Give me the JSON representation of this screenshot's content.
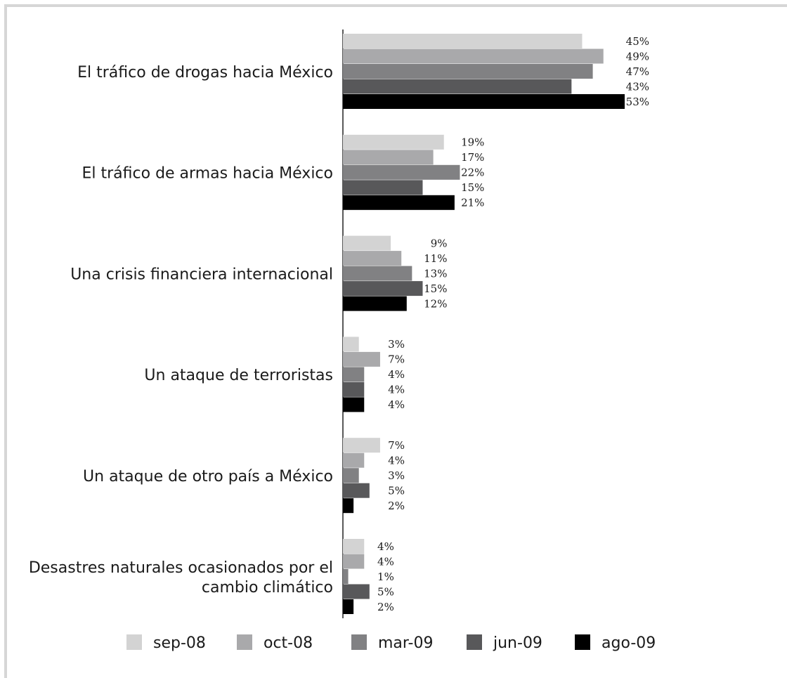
{
  "chart_data": {
    "type": "bar",
    "orientation": "horizontal",
    "categories": [
      [
        "El tráfico de drogas hacia México"
      ],
      [
        "El tráfico de armas hacia México"
      ],
      [
        "Una crisis financiera internacional"
      ],
      [
        "Un ataque de terroristas"
      ],
      [
        "Un ataque de otro país a México"
      ],
      [
        "Desastres naturales ocasionados por el",
        "cambio climático"
      ]
    ],
    "series": [
      {
        "name": "sep-08",
        "color": "#d3d3d3",
        "values": [
          45,
          19,
          9,
          3,
          7,
          4
        ],
        "labels": [
          "45%",
          "19%",
          "9%",
          "3%",
          "7%",
          "4%"
        ]
      },
      {
        "name": "oct-08",
        "color": "#a9a9ab",
        "values": [
          49,
          17,
          11,
          7,
          4,
          4
        ],
        "labels": [
          "49%",
          "17%",
          "11%",
          "7%",
          "4%",
          "4%"
        ]
      },
      {
        "name": "mar-09",
        "color": "#818183",
        "values": [
          47,
          22,
          13,
          4,
          3,
          1
        ],
        "labels": [
          "47%",
          "22%",
          "13%",
          "4%",
          "3%",
          "1%"
        ]
      },
      {
        "name": "jun-09",
        "color": "#58585a",
        "values": [
          43,
          15,
          15,
          4,
          5,
          5
        ],
        "labels": [
          "43%",
          "15%",
          "15%",
          "4%",
          "5%",
          "5%"
        ]
      },
      {
        "name": "ago-09",
        "color": "#000000",
        "values": [
          53,
          21,
          12,
          4,
          2,
          2
        ],
        "labels": [
          "53%",
          "21%",
          "12%",
          "4%",
          "2%",
          "2%"
        ]
      }
    ],
    "xlim": [
      0,
      53
    ],
    "legend_position": "bottom",
    "grid": false
  }
}
